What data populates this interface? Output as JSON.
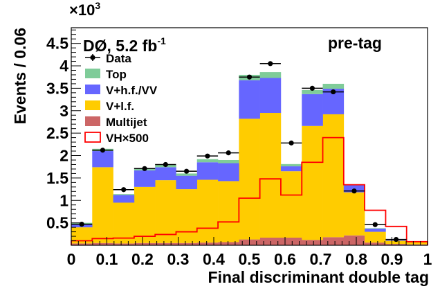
{
  "chart_data": {
    "type": "bar",
    "stacked": true,
    "experiment_label": "DØ, 5.2 fb",
    "experiment_label_sup": "-1",
    "region_label": "pre-tag",
    "xlabel": "Final discriminant double tag",
    "ylabel": "Events / 0.06",
    "y_multiplier": "×10",
    "y_multiplier_exp": "3",
    "xlim": [
      0,
      1
    ],
    "ylim": [
      0,
      4.85
    ],
    "x_ticks": [
      "0",
      "0.1",
      "0.2",
      "0.3",
      "0.4",
      "0.5",
      "0.6",
      "0.7",
      "0.8",
      "0.9",
      "1"
    ],
    "y_ticks": [
      "0.5",
      "1",
      "1.5",
      "2",
      "2.5",
      "3",
      "3.5",
      "4",
      "4.5"
    ],
    "bin_edges": [
      0,
      0.0588,
      0.1176,
      0.1765,
      0.2353,
      0.2941,
      0.3529,
      0.4118,
      0.4706,
      0.5294,
      0.5882,
      0.6471,
      0.7059,
      0.7647,
      0.8235,
      0.8824,
      0.9412,
      1.0
    ],
    "series": [
      {
        "name": "Multijet",
        "color": "#cc6666",
        "legend_style": "fill",
        "values": [
          0.04,
          0.05,
          0.04,
          0.05,
          0.05,
          0.05,
          0.06,
          0.07,
          0.13,
          0.17,
          0.17,
          0.12,
          0.18,
          0.22,
          0.06,
          0.03,
          0.02
        ]
      },
      {
        "name": "V+l.f.",
        "color": "#ffcc00",
        "legend_style": "fill",
        "values": [
          0.36,
          1.69,
          0.91,
          1.25,
          1.4,
          1.2,
          1.4,
          1.36,
          2.69,
          2.78,
          1.48,
          2.54,
          2.74,
          0.96,
          0.24,
          0.07,
          0.06
        ]
      },
      {
        "name": "V+h.f./VV",
        "color": "#6666ff",
        "legend_style": "fill",
        "values": [
          0.06,
          0.36,
          0.17,
          0.37,
          0.29,
          0.3,
          0.39,
          0.4,
          0.86,
          0.78,
          0.11,
          0.71,
          0.57,
          0.16,
          0.07,
          0.02,
          0.01
        ]
      },
      {
        "name": "Top",
        "color": "#7fcc99",
        "legend_style": "fill",
        "values": [
          0.04,
          0.05,
          0.02,
          0.05,
          0.05,
          0.05,
          0.07,
          0.07,
          0.12,
          0.13,
          0.05,
          0.09,
          0.11,
          0.02,
          0.01,
          0.01,
          0.0
        ]
      }
    ],
    "signal": {
      "name": "VH×500",
      "color": "#ff0000",
      "legend_style": "line",
      "values": [
        0.1,
        0.15,
        0.16,
        0.2,
        0.24,
        0.3,
        0.38,
        0.52,
        1.05,
        1.48,
        1.12,
        1.85,
        2.4,
        1.35,
        0.78,
        0.42,
        0.08
      ]
    },
    "data": {
      "name": "Data",
      "legend_style": "marker",
      "values": [
        0.47,
        2.12,
        1.24,
        1.71,
        1.8,
        1.65,
        1.99,
        2.06,
        3.75,
        4.05,
        2.28,
        3.5,
        3.42,
        1.21,
        0.46,
        0.13,
        null
      ]
    },
    "legend": {
      "position": "top-left"
    },
    "grid": false
  }
}
